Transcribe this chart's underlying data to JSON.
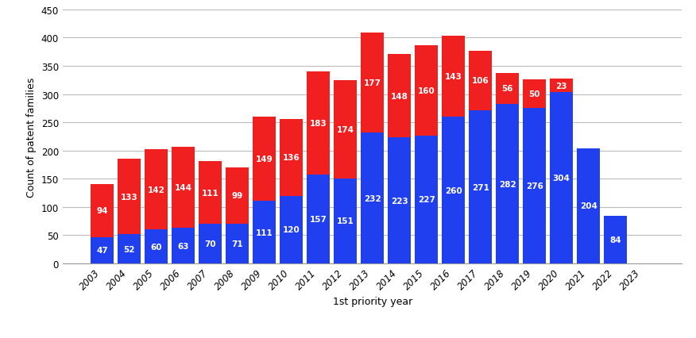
{
  "years": [
    2003,
    2004,
    2005,
    2006,
    2007,
    2008,
    2009,
    2010,
    2011,
    2012,
    2013,
    2014,
    2015,
    2016,
    2017,
    2018,
    2019,
    2020,
    2021,
    2022,
    2023
  ],
  "blue_values": [
    47,
    52,
    60,
    63,
    70,
    71,
    111,
    120,
    157,
    151,
    232,
    223,
    227,
    260,
    271,
    282,
    276,
    304,
    204,
    84,
    0
  ],
  "red_values": [
    94,
    133,
    142,
    144,
    111,
    99,
    149,
    136,
    183,
    174,
    177,
    148,
    160,
    143,
    106,
    56,
    50,
    23,
    0,
    0,
    0
  ],
  "blue_color": "#2040f0",
  "red_color": "#f02020",
  "ylabel": "Count of patent families",
  "xlabel": "1st priority year",
  "ylim": [
    0,
    450
  ],
  "yticks": [
    0,
    50,
    100,
    150,
    200,
    250,
    300,
    350,
    400,
    450
  ],
  "background_color": "#ffffff",
  "grid_color": "#bbbbbb",
  "bar_width": 0.85,
  "label_fontsize": 7.5,
  "axis_label_fontsize": 9,
  "tick_fontsize": 8.5
}
